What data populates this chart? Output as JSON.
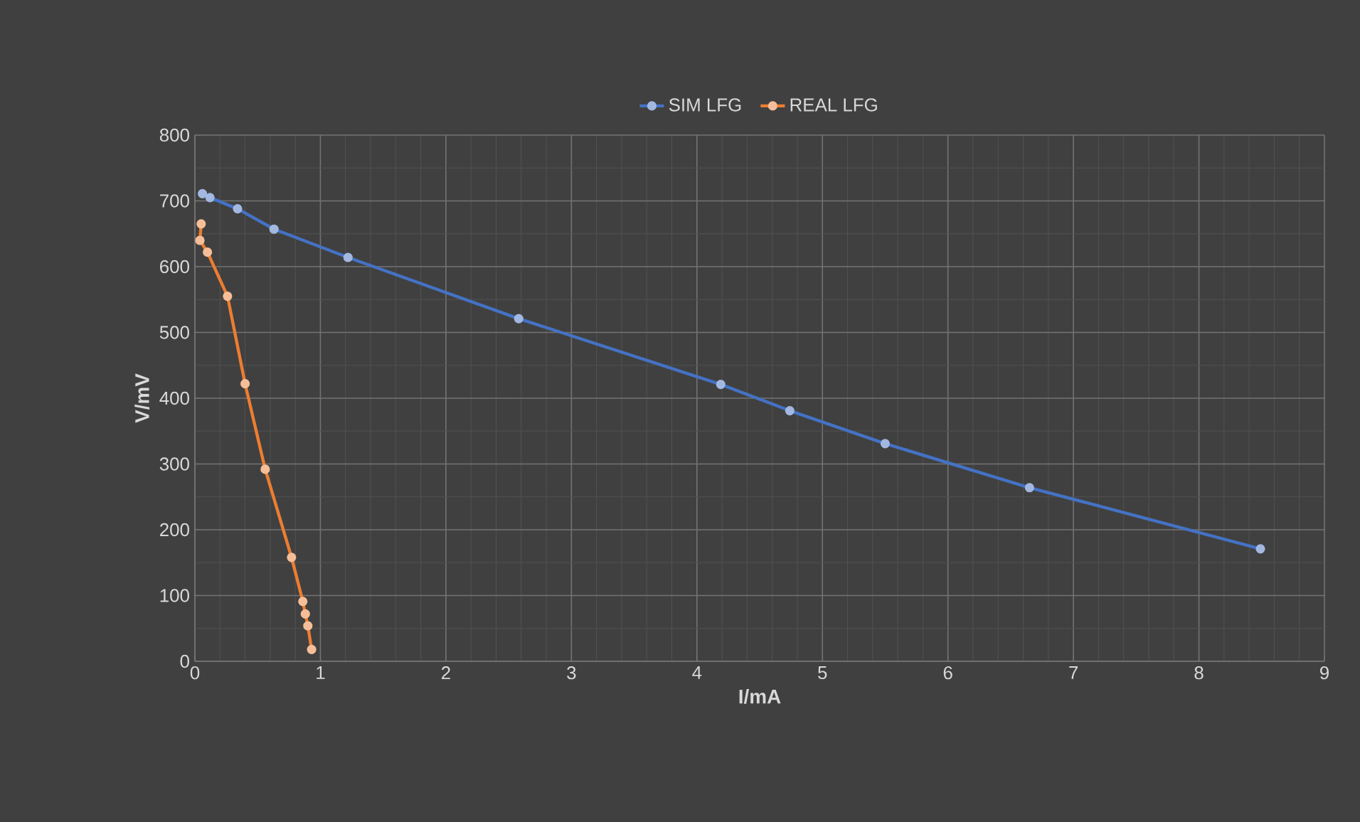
{
  "chart_data": {
    "type": "line",
    "xlabel": "I/mA",
    "ylabel": "V/mV",
    "xlim": [
      0,
      9
    ],
    "ylim": [
      0,
      800
    ],
    "xticks": [
      0,
      1,
      2,
      3,
      4,
      5,
      6,
      7,
      8,
      9
    ],
    "yticks": [
      0,
      100,
      200,
      300,
      400,
      500,
      600,
      700,
      800
    ],
    "grid": true,
    "legend": "top",
    "marker": "circle",
    "series": [
      {
        "name": "SIM LFG",
        "color": "#4472c4",
        "x": [
          0.06,
          0.12,
          0.34,
          0.63,
          1.22,
          2.58,
          4.19,
          4.74,
          5.5,
          6.65,
          8.49
        ],
        "values": [
          711,
          705,
          688,
          657,
          614,
          521,
          421,
          381,
          331,
          264,
          171
        ]
      },
      {
        "name": "REAL LFG",
        "color": "#ed7d31",
        "x": [
          0.05,
          0.04,
          0.1,
          0.26,
          0.4,
          0.56,
          0.77,
          0.86,
          0.88,
          0.9,
          0.93
        ],
        "values": [
          665,
          640,
          622,
          555,
          422,
          292,
          158,
          91,
          72,
          54,
          18
        ]
      }
    ]
  }
}
